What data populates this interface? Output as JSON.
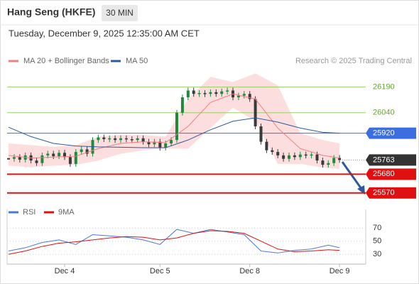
{
  "chart_data": {
    "type": "candlestick",
    "title": "Hang Seng (HKFE)",
    "timeframe": "30 MIN",
    "timestamp": "Tuesday, December 9, 2025 12:35:00 AM CET",
    "source": "Research © 2025 Trading Central",
    "categories": [
      null,
      null,
      null,
      null,
      null,
      null,
      null,
      null,
      null,
      null,
      "Dec 4",
      null,
      null,
      null,
      null,
      null,
      null,
      null,
      null,
      null,
      null,
      null,
      null,
      null,
      null,
      null,
      null,
      "Dec 5",
      null,
      null,
      null,
      null,
      null,
      null,
      null,
      null,
      null,
      null,
      null,
      null,
      null,
      null,
      null,
      "Dec 8",
      null,
      null,
      null,
      null,
      null,
      null,
      null,
      null,
      null,
      null,
      null,
      null,
      null,
      null,
      null,
      "Dec 9"
    ],
    "closes": [
      25770,
      25780,
      25765,
      25790,
      25760,
      25745,
      25790,
      25800,
      25785,
      25805,
      25780,
      25740,
      25810,
      25825,
      25800,
      25880,
      25895,
      25885,
      25890,
      25880,
      25890,
      25885,
      25880,
      25890,
      25870,
      25855,
      25870,
      25835,
      25860,
      25880,
      26040,
      26130,
      26170,
      26150,
      26155,
      26150,
      26160,
      26150,
      26165,
      26170,
      26130,
      26140,
      26150,
      26120,
      25960,
      25870,
      25820,
      25810,
      25790,
      25770,
      25790,
      25780,
      25795,
      25790,
      25795,
      25760,
      25735,
      25745,
      25775,
      25763
    ],
    "up_color": "#1f8a3c",
    "down_color": "#3a3a3a",
    "ylim": [
      25515,
      26305
    ],
    "series": [
      {
        "name": "MA 20 + Bollinger Bands",
        "color": "#f08080",
        "x": [
          0,
          4,
          8,
          12,
          16,
          20,
          24,
          28,
          32,
          36,
          40,
          44,
          48,
          52,
          56,
          59
        ],
        "values": [
          25790,
          25775,
          25780,
          25785,
          25830,
          25860,
          25870,
          25865,
          25960,
          26100,
          26150,
          26120,
          25950,
          25830,
          25790,
          25775
        ],
        "band_upper": [
          25860,
          25850,
          25840,
          25850,
          25900,
          25910,
          25910,
          25900,
          26120,
          26250,
          26220,
          26270,
          26200,
          25920,
          25880,
          25860
        ],
        "band_lower": [
          25730,
          25720,
          25730,
          25735,
          25760,
          25800,
          25820,
          25830,
          25830,
          25950,
          26070,
          25990,
          25740,
          25740,
          25720,
          25710
        ],
        "band_color": "#fbd3d3"
      },
      {
        "name": "MA 50",
        "color": "#2d5a9c",
        "x": [
          0,
          4,
          8,
          12,
          16,
          20,
          24,
          28,
          32,
          36,
          40,
          44,
          48,
          52,
          56,
          59
        ],
        "values": [
          25955,
          25900,
          25860,
          25845,
          25840,
          25838,
          25835,
          25835,
          25880,
          25940,
          25990,
          26010,
          25985,
          25950,
          25925,
          25920
        ]
      }
    ],
    "levels": [
      {
        "value": 26190,
        "color": "#9acd6a",
        "boxed": false
      },
      {
        "value": 26040,
        "color": "#9acd6a",
        "boxed": false
      },
      {
        "value": 25920,
        "color": "#3b6fe0",
        "boxed": true
      },
      {
        "value": 25763,
        "color": "#333333",
        "boxed": true,
        "dotted": true
      },
      {
        "value": 25680,
        "color": "#e01010",
        "boxed": true
      },
      {
        "value": 25570,
        "color": "#e01010",
        "boxed": true
      }
    ],
    "rsi": {
      "ylim": [
        15,
        80
      ],
      "yticks": [
        70,
        50,
        30
      ],
      "series": [
        {
          "name": "RSI",
          "color": "#4a78d8",
          "x": [
            0,
            3,
            6,
            9,
            12,
            15,
            18,
            21,
            24,
            27,
            30,
            33,
            36,
            39,
            42,
            45,
            48,
            51,
            54,
            57,
            59
          ],
          "values": [
            35,
            40,
            48,
            52,
            45,
            60,
            58,
            56,
            52,
            45,
            68,
            62,
            68,
            64,
            60,
            35,
            32,
            36,
            38,
            44,
            40
          ]
        },
        {
          "name": "9MA",
          "color": "#e01010",
          "x": [
            0,
            3,
            6,
            9,
            12,
            15,
            18,
            21,
            24,
            27,
            30,
            33,
            36,
            39,
            42,
            45,
            48,
            51,
            54,
            57,
            59
          ],
          "values": [
            30,
            35,
            42,
            47,
            49,
            52,
            55,
            57,
            56,
            52,
            55,
            62,
            66,
            65,
            62,
            50,
            38,
            34,
            35,
            37,
            36
          ]
        }
      ]
    }
  }
}
